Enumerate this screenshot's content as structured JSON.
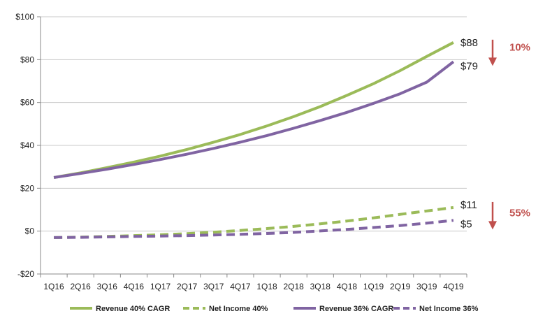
{
  "chart_data": {
    "type": "line",
    "categories": [
      "1Q16",
      "2Q16",
      "3Q16",
      "4Q16",
      "1Q17",
      "2Q17",
      "3Q17",
      "4Q17",
      "1Q18",
      "2Q18",
      "3Q18",
      "4Q18",
      "1Q19",
      "2Q19",
      "3Q19",
      "4Q19"
    ],
    "ylim": [
      -20,
      100
    ],
    "yticks": [
      -20,
      0,
      20,
      40,
      60,
      80,
      100
    ],
    "ytick_labels": [
      "-$20",
      "$0",
      "$20",
      "$40",
      "$60",
      "$80",
      "$100"
    ],
    "series": [
      {
        "name": "Revenue 40% CAGR",
        "color": "#9bbb59",
        "dash": false,
        "values": [
          25,
          27.2,
          29.6,
          32.2,
          35,
          38.1,
          41.5,
          45.1,
          49.1,
          53.4,
          58.1,
          63.3,
          68.8,
          74.9,
          81.5,
          88
        ]
      },
      {
        "name": "Net Income 40%",
        "color": "#9bbb59",
        "dash": true,
        "values": [
          -3,
          -2.8,
          -2.5,
          -2.1,
          -1.7,
          -1.2,
          -0.5,
          0.3,
          1.2,
          2.2,
          3.4,
          4.7,
          6.2,
          7.8,
          9.4,
          11
        ]
      },
      {
        "name": "Revenue 36% CAGR",
        "color": "#8064a2",
        "dash": false,
        "values": [
          25,
          26.9,
          28.9,
          31.1,
          33.4,
          35.9,
          38.6,
          41.5,
          44.6,
          48,
          51.6,
          55.4,
          59.6,
          64.1,
          69.5,
          79
        ]
      },
      {
        "name": "Net Income 36%",
        "color": "#8064a2",
        "dash": true,
        "values": [
          -3,
          -2.9,
          -2.7,
          -2.5,
          -2.3,
          -2.1,
          -1.8,
          -1.5,
          -1.1,
          -0.6,
          0.1,
          0.8,
          1.7,
          2.6,
          3.7,
          5
        ]
      }
    ],
    "end_labels": [
      "$88",
      "$11",
      "$79",
      "$5"
    ],
    "annotations": [
      {
        "text": "10%",
        "color": "#c0504d"
      },
      {
        "text": "55%",
        "color": "#c0504d"
      }
    ],
    "grid": true,
    "legend_position": "bottom"
  }
}
